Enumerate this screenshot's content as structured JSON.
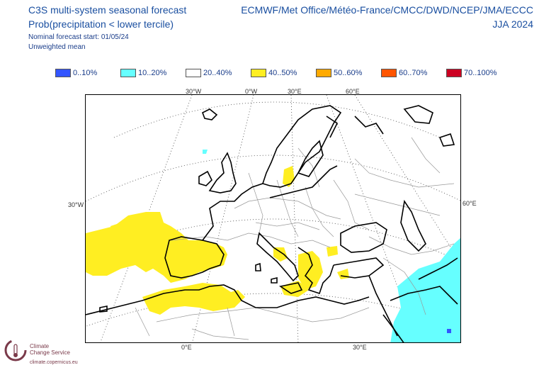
{
  "header": {
    "title_line1": "C3S multi-system seasonal forecast",
    "title_line2": "Prob(precipitation < lower tercile)",
    "nominal_start": "Nominal forecast start: 01/05/24",
    "weighting": "Unweighted mean",
    "models": "ECMWF/Met Office/Météo-France/CMCC/DWD/NCEP/JMA/ECCC",
    "season": "JJA 2024"
  },
  "legend": [
    {
      "label": "0..10%",
      "color": "#3355ff"
    },
    {
      "label": "10..20%",
      "color": "#66ffff"
    },
    {
      "label": "20..40%",
      "color": "#ffffff"
    },
    {
      "label": "40..50%",
      "color": "#ffee22"
    },
    {
      "label": "50..60%",
      "color": "#ffaa00"
    },
    {
      "label": "60..70%",
      "color": "#ff5500"
    },
    {
      "label": "70..100%",
      "color": "#cc0022"
    }
  ],
  "axes": {
    "top": [
      "30°W",
      "0°W",
      "30°E",
      "60°E"
    ],
    "left": "30°W",
    "right": "60°E",
    "bottom": [
      "0°E",
      "30°E"
    ]
  },
  "logo": {
    "name_line1": "Climate",
    "name_line2": "Change Service",
    "url": "climate.copernicus.eu"
  }
}
